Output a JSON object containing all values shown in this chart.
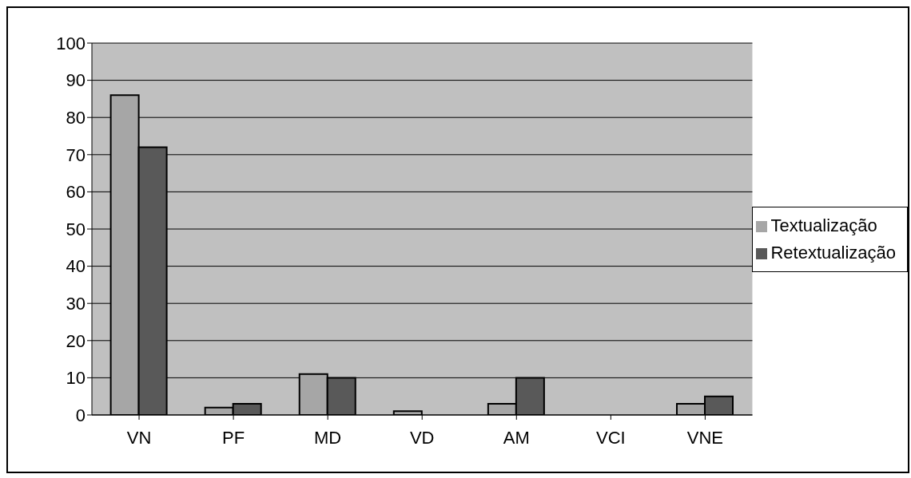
{
  "chart_data": {
    "type": "bar",
    "categories": [
      "VN",
      "PF",
      "MD",
      "VD",
      "AM",
      "VCI",
      "VNE"
    ],
    "series": [
      {
        "name": "Textualização",
        "color": "#a6a6a6",
        "values": [
          86,
          2,
          11,
          1,
          3,
          0,
          3
        ]
      },
      {
        "name": "Retextualização",
        "color": "#595959",
        "values": [
          72,
          3,
          10,
          0,
          10,
          0,
          5
        ]
      }
    ],
    "ylim": [
      0,
      100
    ],
    "yticks": [
      0,
      10,
      20,
      30,
      40,
      50,
      60,
      70,
      80,
      90,
      100
    ],
    "grid": "y",
    "legend": "right"
  }
}
